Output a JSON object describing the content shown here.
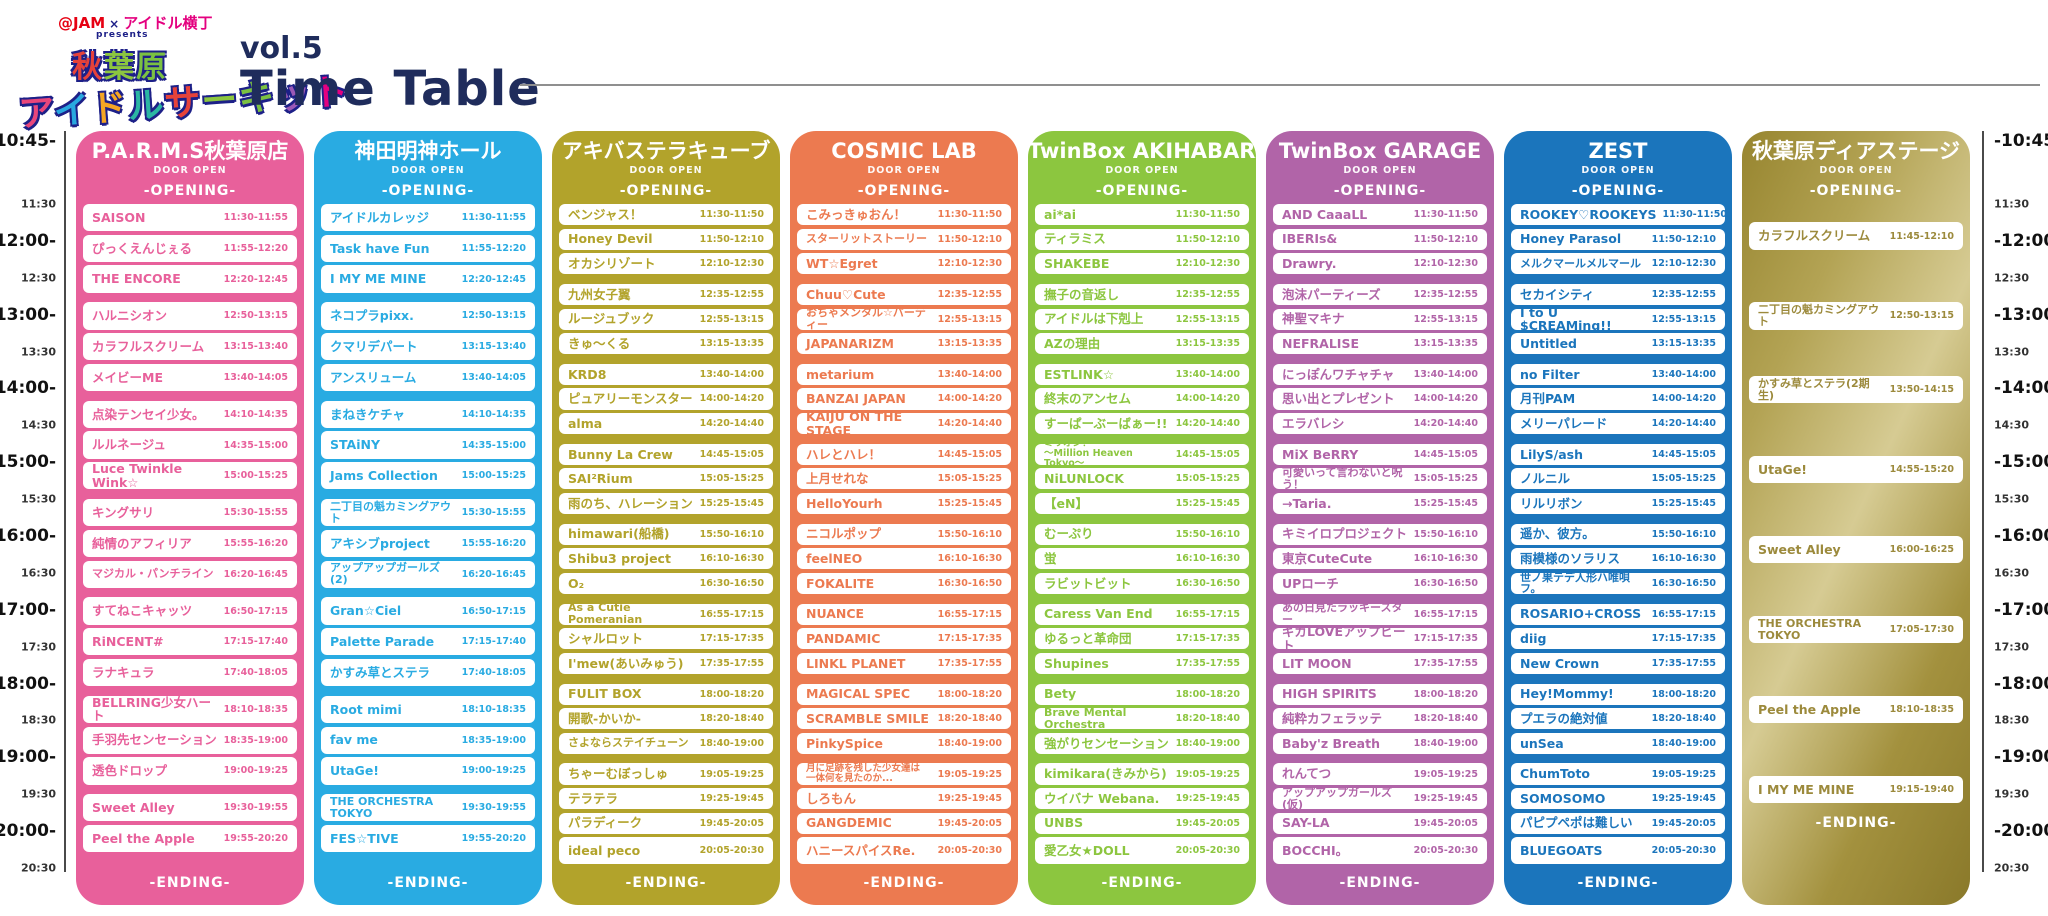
{
  "header": {
    "brand1": "@JAM",
    "brand_x": "×",
    "brand2": "アイドル横丁",
    "presents": "presents",
    "logo_line1": "秋葉原",
    "logo_line2": "アイドルサーキット",
    "logo_palette": [
      "#e8467b",
      "#29a8df",
      "#f5a623",
      "#2bb6a3",
      "#e6423a",
      "#8cc63f",
      "#7bc142",
      "#9b59b6",
      "#e4007f",
      "#1d9fd8"
    ],
    "vol": "vol.5",
    "title": "Time Table"
  },
  "labels": {
    "door_open": "DOOR OPEN",
    "opening": "-OPENING-",
    "ending": "-ENDING-"
  },
  "time_axis": [
    {
      "label": "10:45",
      "kind": "open"
    },
    {
      "label": "11:30",
      "kind": "minor"
    },
    {
      "label": "12:00",
      "kind": "major"
    },
    {
      "label": "12:30",
      "kind": "minor"
    },
    {
      "label": "13:00",
      "kind": "major"
    },
    {
      "label": "13:30",
      "kind": "minor"
    },
    {
      "label": "14:00",
      "kind": "major"
    },
    {
      "label": "14:30",
      "kind": "minor"
    },
    {
      "label": "15:00",
      "kind": "major"
    },
    {
      "label": "15:30",
      "kind": "minor"
    },
    {
      "label": "16:00",
      "kind": "major"
    },
    {
      "label": "16:30",
      "kind": "minor"
    },
    {
      "label": "17:00",
      "kind": "major"
    },
    {
      "label": "17:30",
      "kind": "minor"
    },
    {
      "label": "18:00",
      "kind": "major"
    },
    {
      "label": "18:30",
      "kind": "minor"
    },
    {
      "label": "19:00",
      "kind": "major"
    },
    {
      "label": "19:30",
      "kind": "minor"
    },
    {
      "label": "20:00",
      "kind": "major"
    },
    {
      "label": "20:30",
      "kind": "minor"
    }
  ],
  "venues": [
    {
      "name": "P.A.R.M.S秋葉原店",
      "color": "#e8609b",
      "acts": [
        {
          "name": "SAISON",
          "time": "11:30-11:55"
        },
        {
          "name": "ぴっくえんじぇる",
          "time": "11:55-12:20"
        },
        {
          "name": "THE ENCORE",
          "time": "12:20-12:45"
        },
        {
          "name": "ハルニシオン",
          "time": "12:50-13:15"
        },
        {
          "name": "カラフルスクリーム",
          "time": "13:15-13:40"
        },
        {
          "name": "メイビーME",
          "time": "13:40-14:05"
        },
        {
          "name": "点染テンセイ少女。",
          "time": "14:10-14:35"
        },
        {
          "name": "ルルネージュ",
          "time": "14:35-15:00"
        },
        {
          "name": "Luce Twinkle Wink☆",
          "time": "15:00-15:25"
        },
        {
          "name": "キングサリ",
          "time": "15:30-15:55"
        },
        {
          "name": "純情のアフィリア",
          "time": "15:55-16:20"
        },
        {
          "name": "マジカル・パンチライン",
          "time": "16:20-16:45"
        },
        {
          "name": "すてねこキャッツ",
          "time": "16:50-17:15"
        },
        {
          "name": "RiNCENT#",
          "time": "17:15-17:40"
        },
        {
          "name": "ラナキュラ",
          "time": "17:40-18:05"
        },
        {
          "name": "BELLRING少女ハート",
          "time": "18:10-18:35"
        },
        {
          "name": "手羽先センセーション",
          "time": "18:35-19:00"
        },
        {
          "name": "透色ドロップ",
          "time": "19:00-19:25"
        },
        {
          "name": "Sweet Alley",
          "time": "19:30-19:55"
        },
        {
          "name": "Peel the Apple",
          "time": "19:55-20:20"
        }
      ]
    },
    {
      "name": "神田明神ホール",
      "color": "#29abe2",
      "acts": [
        {
          "name": "アイドルカレッジ",
          "time": "11:30-11:55"
        },
        {
          "name": "Task have Fun",
          "time": "11:55-12:20"
        },
        {
          "name": "I MY ME MINE",
          "time": "12:20-12:45"
        },
        {
          "name": "ネコプラpixx.",
          "time": "12:50-13:15"
        },
        {
          "name": "クマリデパート",
          "time": "13:15-13:40"
        },
        {
          "name": "アンスリューム",
          "time": "13:40-14:05"
        },
        {
          "name": "まねきケチャ",
          "time": "14:10-14:35"
        },
        {
          "name": "STAiNY",
          "time": "14:35-15:00"
        },
        {
          "name": "Jams Collection",
          "time": "15:00-15:25"
        },
        {
          "name": "二丁目の魁カミングアウト",
          "time": "15:30-15:55"
        },
        {
          "name": "アキシブproject",
          "time": "15:55-16:20"
        },
        {
          "name": "アップアップガールズ(2)",
          "time": "16:20-16:45"
        },
        {
          "name": "Gran☆Ciel",
          "time": "16:50-17:15"
        },
        {
          "name": "Palette Parade",
          "time": "17:15-17:40"
        },
        {
          "name": "かすみ草とステラ",
          "time": "17:40-18:05"
        },
        {
          "name": "Root mimi",
          "time": "18:10-18:35"
        },
        {
          "name": "fav me",
          "time": "18:35-19:00"
        },
        {
          "name": "UtaGe!",
          "time": "19:00-19:25"
        },
        {
          "name": "THE ORCHESTRA TOKYO",
          "time": "19:30-19:55"
        },
        {
          "name": "FES☆TIVE",
          "time": "19:55-20:20"
        }
      ]
    },
    {
      "name": "アキバステラキューブ",
      "color": "#b2a32b",
      "acts": [
        {
          "name": "ベンジャス！",
          "time": "11:30-11:50"
        },
        {
          "name": "Honey Devil",
          "time": "11:50-12:10"
        },
        {
          "name": "オカシリゾート",
          "time": "12:10-12:30"
        },
        {
          "name": "九州女子翼",
          "time": "12:35-12:55"
        },
        {
          "name": "ルージュブック",
          "time": "12:55-13:15"
        },
        {
          "name": "きゅ〜くる",
          "time": "13:15-13:35"
        },
        {
          "name": "KRD8",
          "time": "13:40-14:00"
        },
        {
          "name": "ピュアリーモンスター",
          "time": "14:00-14:20"
        },
        {
          "name": "alma",
          "time": "14:20-14:40"
        },
        {
          "name": "Bunny La Crew",
          "time": "14:45-15:05"
        },
        {
          "name": "SAI²Rium",
          "time": "15:05-15:25"
        },
        {
          "name": "雨のち、ハレーション",
          "time": "15:25-15:45"
        },
        {
          "name": "himawari(船橋)",
          "time": "15:50-16:10"
        },
        {
          "name": "Shibu3 project",
          "time": "16:10-16:30"
        },
        {
          "name": "O₂",
          "time": "16:30-16:50"
        },
        {
          "name": "As a Cutie Pomeranian",
          "time": "16:55-17:15"
        },
        {
          "name": "シャルロット",
          "time": "17:15-17:35"
        },
        {
          "name": "I'mew(あいみゅう)",
          "time": "17:35-17:55"
        },
        {
          "name": "FULIT BOX",
          "time": "18:00-18:20"
        },
        {
          "name": "開歌-かいか-",
          "time": "18:20-18:40"
        },
        {
          "name": "さよならステイチューン",
          "time": "18:40-19:00"
        },
        {
          "name": "ちゃーむぼっしゅ",
          "time": "19:05-19:25"
        },
        {
          "name": "テラテラ",
          "time": "19:25-19:45"
        },
        {
          "name": "パラディーク",
          "time": "19:45-20:05"
        },
        {
          "name": "ideal peco",
          "time": "20:05-20:30"
        }
      ]
    },
    {
      "name": "COSMIC LAB",
      "color": "#ec7a50",
      "acts": [
        {
          "name": "こみっきゅおん！",
          "time": "11:30-11:50"
        },
        {
          "name": "スターリットストーリー",
          "time": "11:50-12:10"
        },
        {
          "name": "WT☆Egret",
          "time": "12:10-12:30"
        },
        {
          "name": "Chuu♡Cute",
          "time": "12:35-12:55"
        },
        {
          "name": "おちゃメンタル☆パーティー",
          "time": "12:55-13:15"
        },
        {
          "name": "JAPANARIZM",
          "time": "13:15-13:35"
        },
        {
          "name": "metarium",
          "time": "13:40-14:00"
        },
        {
          "name": "BANZAI JAPAN",
          "time": "14:00-14:20"
        },
        {
          "name": "KAIJU ON THE STAGE",
          "time": "14:20-14:40"
        },
        {
          "name": "ハレとハレ！",
          "time": "14:45-15:05"
        },
        {
          "name": "上月せれな",
          "time": "15:05-15:25"
        },
        {
          "name": "HelloYourh",
          "time": "15:25-15:45"
        },
        {
          "name": "ニコルポップ",
          "time": "15:50-16:10"
        },
        {
          "name": "feelNEO",
          "time": "16:10-16:30"
        },
        {
          "name": "FOKALITE",
          "time": "16:30-16:50"
        },
        {
          "name": "NUANCE",
          "time": "16:55-17:15"
        },
        {
          "name": "PANDAMIC",
          "time": "17:15-17:35"
        },
        {
          "name": "LINKL PLANET",
          "time": "17:35-17:55"
        },
        {
          "name": "MAGICAL SPEC",
          "time": "18:00-18:20"
        },
        {
          "name": "SCRAMBLE SMILE",
          "time": "18:20-18:40"
        },
        {
          "name": "PinkySpice",
          "time": "18:40-19:00"
        },
        {
          "name": "月に足跡を残した少女達は\n一体何を見たのか...",
          "time": "19:05-19:25"
        },
        {
          "name": "しろもん",
          "time": "19:25-19:45"
        },
        {
          "name": "GANGDEMIC",
          "time": "19:45-20:05"
        },
        {
          "name": "ハニースパイスRe.",
          "time": "20:05-20:30"
        }
      ]
    },
    {
      "name": "TwinBox AKIHABARA",
      "color": "#8cc63f",
      "acts": [
        {
          "name": "ai*ai",
          "time": "11:30-11:50"
        },
        {
          "name": "ティラミス",
          "time": "11:50-12:10"
        },
        {
          "name": "SHAKEBE",
          "time": "12:10-12:30"
        },
        {
          "name": "撫子の音返し",
          "time": "12:35-12:55"
        },
        {
          "name": "アイドルは下剋上",
          "time": "12:55-13:15"
        },
        {
          "name": "AZの理由",
          "time": "13:15-13:35"
        },
        {
          "name": "ESTLINK☆",
          "time": "13:40-14:00"
        },
        {
          "name": "終末のアンセム",
          "time": "14:00-14:20"
        },
        {
          "name": "すーぱーぶーばぁー!!",
          "time": "14:20-14:40"
        },
        {
          "name": "ミリオン！\n〜Million Heaven Tokyo〜",
          "time": "14:45-15:05"
        },
        {
          "name": "NiLUNLOCK",
          "time": "15:05-15:25"
        },
        {
          "name": "【eN】",
          "time": "15:25-15:45"
        },
        {
          "name": "むーぷり",
          "time": "15:50-16:10"
        },
        {
          "name": "蛍",
          "time": "16:10-16:30"
        },
        {
          "name": "ラビットビット",
          "time": "16:30-16:50"
        },
        {
          "name": "Caress Van End",
          "time": "16:55-17:15"
        },
        {
          "name": "ゆるっと革命団",
          "time": "17:15-17:35"
        },
        {
          "name": "Shupines",
          "time": "17:35-17:55"
        },
        {
          "name": "Bety",
          "time": "18:00-18:20"
        },
        {
          "name": "Brave Mental Orchestra",
          "time": "18:20-18:40"
        },
        {
          "name": "強がりセンセーション",
          "time": "18:40-19:00"
        },
        {
          "name": "kimikara(きみから)",
          "time": "19:05-19:25"
        },
        {
          "name": "ウイバナ Webana.",
          "time": "19:25-19:45"
        },
        {
          "name": "UNBS",
          "time": "19:45-20:05"
        },
        {
          "name": "愛乙女★DOLL",
          "time": "20:05-20:30"
        }
      ]
    },
    {
      "name": "TwinBox GARAGE",
      "color": "#b164a8",
      "acts": [
        {
          "name": "AND CaaaLL",
          "time": "11:30-11:50"
        },
        {
          "name": "IBERIs&",
          "time": "11:50-12:10"
        },
        {
          "name": "Drawry.",
          "time": "12:10-12:30"
        },
        {
          "name": "泡沫パーティーズ",
          "time": "12:35-12:55"
        },
        {
          "name": "神聖マキナ",
          "time": "12:55-13:15"
        },
        {
          "name": "NEFRALISE",
          "time": "13:15-13:35"
        },
        {
          "name": "にっぽんワチャチャ",
          "time": "13:40-14:00"
        },
        {
          "name": "思い出とプレゼント",
          "time": "14:00-14:20"
        },
        {
          "name": "エラバレシ",
          "time": "14:20-14:40"
        },
        {
          "name": "MiX BeRRY",
          "time": "14:45-15:05"
        },
        {
          "name": "可愛いって言わないと呪う！",
          "time": "15:05-15:25"
        },
        {
          "name": "→Taria.",
          "time": "15:25-15:45"
        },
        {
          "name": "キミイロプロジェクト",
          "time": "15:50-16:10"
        },
        {
          "name": "東京CuteCute",
          "time": "16:10-16:30"
        },
        {
          "name": "UPローチ",
          "time": "16:30-16:50"
        },
        {
          "name": "あの日見たラッキースター",
          "time": "16:55-17:15"
        },
        {
          "name": "ギガLOVEアップビート",
          "time": "17:15-17:35"
        },
        {
          "name": "LIT MOON",
          "time": "17:35-17:55"
        },
        {
          "name": "HIGH SPIRITS",
          "time": "18:00-18:20"
        },
        {
          "name": "純粋カフェラッテ",
          "time": "18:20-18:40"
        },
        {
          "name": "Baby'z Breath",
          "time": "18:40-19:00"
        },
        {
          "name": "れんてつ",
          "time": "19:05-19:25"
        },
        {
          "name": "アップアップガールズ(仮)",
          "time": "19:25-19:45"
        },
        {
          "name": "SAY-LA",
          "time": "19:45-20:05"
        },
        {
          "name": "BOCCHI。",
          "time": "20:05-20:30"
        }
      ]
    },
    {
      "name": "ZEST",
      "color": "#1b75bc",
      "acts": [
        {
          "name": "ROOKEY♡ROOKEYS",
          "time": "11:30-11:50"
        },
        {
          "name": "Honey Parasol",
          "time": "11:50-12:10"
        },
        {
          "name": "メルクマールメルマール",
          "time": "12:10-12:30"
        },
        {
          "name": "セカイシティ",
          "time": "12:35-12:55"
        },
        {
          "name": "I to U $CREAMing!!",
          "time": "12:55-13:15"
        },
        {
          "name": "Untitled",
          "time": "13:15-13:35"
        },
        {
          "name": "no Filter",
          "time": "13:40-14:00"
        },
        {
          "name": "月刊PAM",
          "time": "14:00-14:20"
        },
        {
          "name": "メリーパレード",
          "time": "14:20-14:40"
        },
        {
          "name": "LilyS/ash",
          "time": "14:45-15:05"
        },
        {
          "name": "ノルニル",
          "time": "15:05-15:25"
        },
        {
          "name": "リルリボン",
          "time": "15:25-15:45"
        },
        {
          "name": "遥か、彼方。",
          "time": "15:50-16:10"
        },
        {
          "name": "雨模様のソラリス",
          "time": "16:10-16:30"
        },
        {
          "name": "世ノ果テデ人形ハ唯唄フ。",
          "time": "16:30-16:50"
        },
        {
          "name": "ROSARIO+CROSS",
          "time": "16:55-17:15"
        },
        {
          "name": "diig",
          "time": "17:15-17:35"
        },
        {
          "name": "New Crown",
          "time": "17:35-17:55"
        },
        {
          "name": "Hey!Mommy!",
          "time": "18:00-18:20"
        },
        {
          "name": "プエラの絶対値",
          "time": "18:20-18:40"
        },
        {
          "name": "unSea",
          "time": "18:40-19:00"
        },
        {
          "name": "ChumToto",
          "time": "19:05-19:25"
        },
        {
          "name": "SOMOSOMO",
          "time": "19:25-19:45"
        },
        {
          "name": "パピプペポは難しい",
          "time": "19:45-20:05"
        },
        {
          "name": "BLUEGOATS",
          "time": "20:05-20:30"
        }
      ]
    },
    {
      "name": "秋葉原ディアステージ",
      "color": "#9c8a3c",
      "gradient": [
        "#97852f",
        "#b3a354",
        "#d6cb93",
        "#a3913e",
        "#8a792a"
      ],
      "ending_after_last_act": true,
      "acts": [
        {
          "name": "カラフルスクリーム",
          "time": "11:45-12:10"
        },
        {
          "name": "二丁目の魁カミングアウト",
          "time": "12:50-13:15"
        },
        {
          "name": "かすみ草とステラ(2期生)",
          "time": "13:50-14:15"
        },
        {
          "name": "UtaGe!",
          "time": "14:55-15:20"
        },
        {
          "name": "Sweet Alley",
          "time": "16:00-16:25"
        },
        {
          "name": "THE ORCHESTRA TOKYO",
          "time": "17:05-17:30"
        },
        {
          "name": "Peel the Apple",
          "time": "18:10-18:35"
        },
        {
          "name": "I MY ME MINE",
          "time": "19:15-19:40"
        }
      ]
    }
  ]
}
